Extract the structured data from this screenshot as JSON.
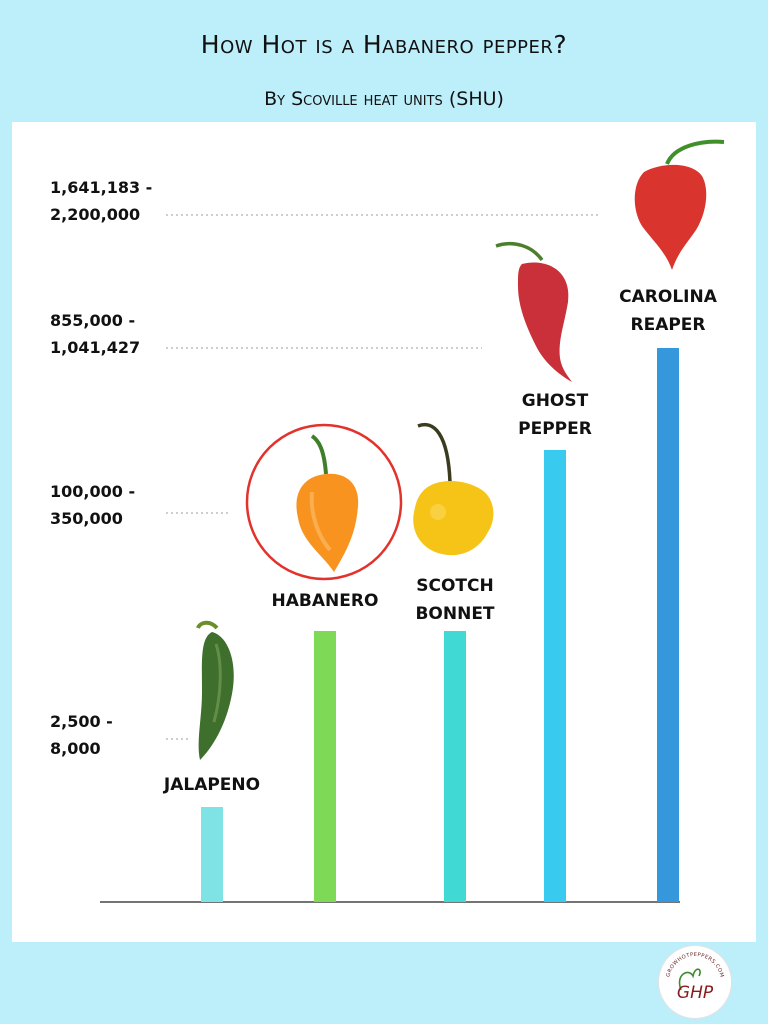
{
  "header": {
    "title": "How Hot is a Habanero pepper?",
    "subtitle": "By Scoville heat units (SHU)"
  },
  "chart_data": {
    "type": "bar",
    "categories": [
      "JALAPENO",
      "HABANERO",
      "SCOTCH BONNET",
      "GHOST PEPPER",
      "CAROLINA REAPER"
    ],
    "label_lines": [
      [
        "JALAPENO"
      ],
      [
        "HABANERO"
      ],
      [
        "SCOTCH",
        "BONNET"
      ],
      [
        "GHOST",
        "PEPPER"
      ],
      [
        "CAROLINA",
        "REAPER"
      ]
    ],
    "value_ranges": [
      [
        2500,
        8000
      ],
      [
        100000,
        350000
      ],
      [
        100000,
        350000
      ],
      [
        855000,
        1041427
      ],
      [
        1641183,
        2200000
      ]
    ],
    "tick_labels": [
      [
        "2,500 -",
        "8,000"
      ],
      [
        "100,000 -",
        "350,000"
      ],
      [
        "855,000 -",
        "1,041,427"
      ],
      [
        "1,641,183 -",
        "2,200,000"
      ]
    ],
    "bar_colors": [
      "#7fe3e5",
      "#7ed957",
      "#40d9d3",
      "#38cbef",
      "#3698dc"
    ],
    "highlight": "HABANERO",
    "highlight_color": "#e2322b",
    "gridlines": "dotted"
  },
  "logo": {
    "text": "GHP",
    "ring_text": "GROWHOTPEPPERS.COM"
  }
}
